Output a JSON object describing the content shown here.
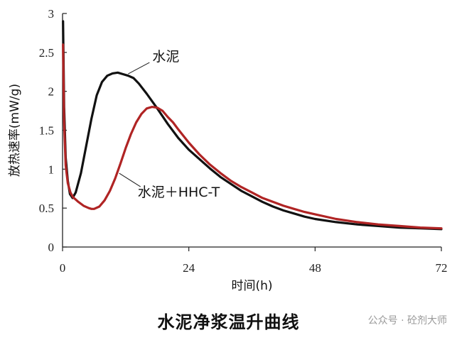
{
  "chart_data": {
    "type": "line",
    "title": "水泥净浆温升曲线",
    "xlabel": "时间(h)",
    "ylabel": "放热速率(mW/g)",
    "xlim": [
      0,
      72
    ],
    "ylim": [
      0,
      3
    ],
    "xticks": [
      "0",
      "24",
      "48",
      "72"
    ],
    "yticks": [
      "0",
      "0.5",
      "1",
      "1.5",
      "2",
      "2.5",
      "3"
    ],
    "grid": false,
    "series": [
      {
        "name": "水泥",
        "color": "#111111",
        "points": [
          [
            0.1,
            2.9
          ],
          [
            0.3,
            1.8
          ],
          [
            0.6,
            1.15
          ],
          [
            1.0,
            0.85
          ],
          [
            1.4,
            0.68
          ],
          [
            1.9,
            0.63
          ],
          [
            2.5,
            0.7
          ],
          [
            3.5,
            0.95
          ],
          [
            4.5,
            1.3
          ],
          [
            5.5,
            1.65
          ],
          [
            6.5,
            1.95
          ],
          [
            7.5,
            2.12
          ],
          [
            8.5,
            2.2
          ],
          [
            9.5,
            2.23
          ],
          [
            10.5,
            2.24
          ],
          [
            11.5,
            2.22
          ],
          [
            12.5,
            2.2
          ],
          [
            13.5,
            2.17
          ],
          [
            14.5,
            2.1
          ],
          [
            16,
            1.97
          ],
          [
            18,
            1.78
          ],
          [
            20,
            1.58
          ],
          [
            22,
            1.4
          ],
          [
            24,
            1.25
          ],
          [
            26,
            1.13
          ],
          [
            28,
            1.01
          ],
          [
            30,
            0.9
          ],
          [
            32,
            0.81
          ],
          [
            34,
            0.72
          ],
          [
            36,
            0.65
          ],
          [
            38,
            0.58
          ],
          [
            40,
            0.52
          ],
          [
            42,
            0.47
          ],
          [
            44,
            0.43
          ],
          [
            46,
            0.39
          ],
          [
            48,
            0.36
          ],
          [
            52,
            0.32
          ],
          [
            56,
            0.29
          ],
          [
            60,
            0.27
          ],
          [
            64,
            0.25
          ],
          [
            68,
            0.24
          ],
          [
            72,
            0.23
          ]
        ]
      },
      {
        "name": "水泥＋HHC-T",
        "color": "#b02424",
        "points": [
          [
            0.1,
            2.6
          ],
          [
            0.3,
            1.6
          ],
          [
            0.6,
            1.05
          ],
          [
            1.0,
            0.82
          ],
          [
            1.5,
            0.7
          ],
          [
            2,
            0.64
          ],
          [
            3,
            0.58
          ],
          [
            4,
            0.53
          ],
          [
            5,
            0.5
          ],
          [
            5.5,
            0.49
          ],
          [
            6,
            0.49
          ],
          [
            7,
            0.52
          ],
          [
            8,
            0.6
          ],
          [
            9,
            0.72
          ],
          [
            10,
            0.88
          ],
          [
            11,
            1.07
          ],
          [
            12,
            1.27
          ],
          [
            13,
            1.45
          ],
          [
            14,
            1.6
          ],
          [
            15,
            1.71
          ],
          [
            16,
            1.78
          ],
          [
            17,
            1.8
          ],
          [
            18,
            1.79
          ],
          [
            19,
            1.75
          ],
          [
            20,
            1.67
          ],
          [
            21,
            1.6
          ],
          [
            22,
            1.51
          ],
          [
            24,
            1.34
          ],
          [
            26,
            1.19
          ],
          [
            28,
            1.06
          ],
          [
            30,
            0.95
          ],
          [
            32,
            0.85
          ],
          [
            34,
            0.77
          ],
          [
            36,
            0.7
          ],
          [
            38,
            0.63
          ],
          [
            40,
            0.58
          ],
          [
            42,
            0.53
          ],
          [
            44,
            0.49
          ],
          [
            46,
            0.45
          ],
          [
            48,
            0.42
          ],
          [
            52,
            0.36
          ],
          [
            56,
            0.32
          ],
          [
            60,
            0.29
          ],
          [
            64,
            0.27
          ],
          [
            68,
            0.25
          ],
          [
            72,
            0.24
          ]
        ]
      }
    ],
    "annotations": [
      {
        "text": "水泥",
        "series": 0,
        "at_x": 12.2
      },
      {
        "text": "水泥＋HHC-T",
        "series": 1,
        "at_x": 10.5
      }
    ]
  },
  "caption": "水泥净浆温升曲线",
  "watermark": "公众号 · 砼剂大师"
}
